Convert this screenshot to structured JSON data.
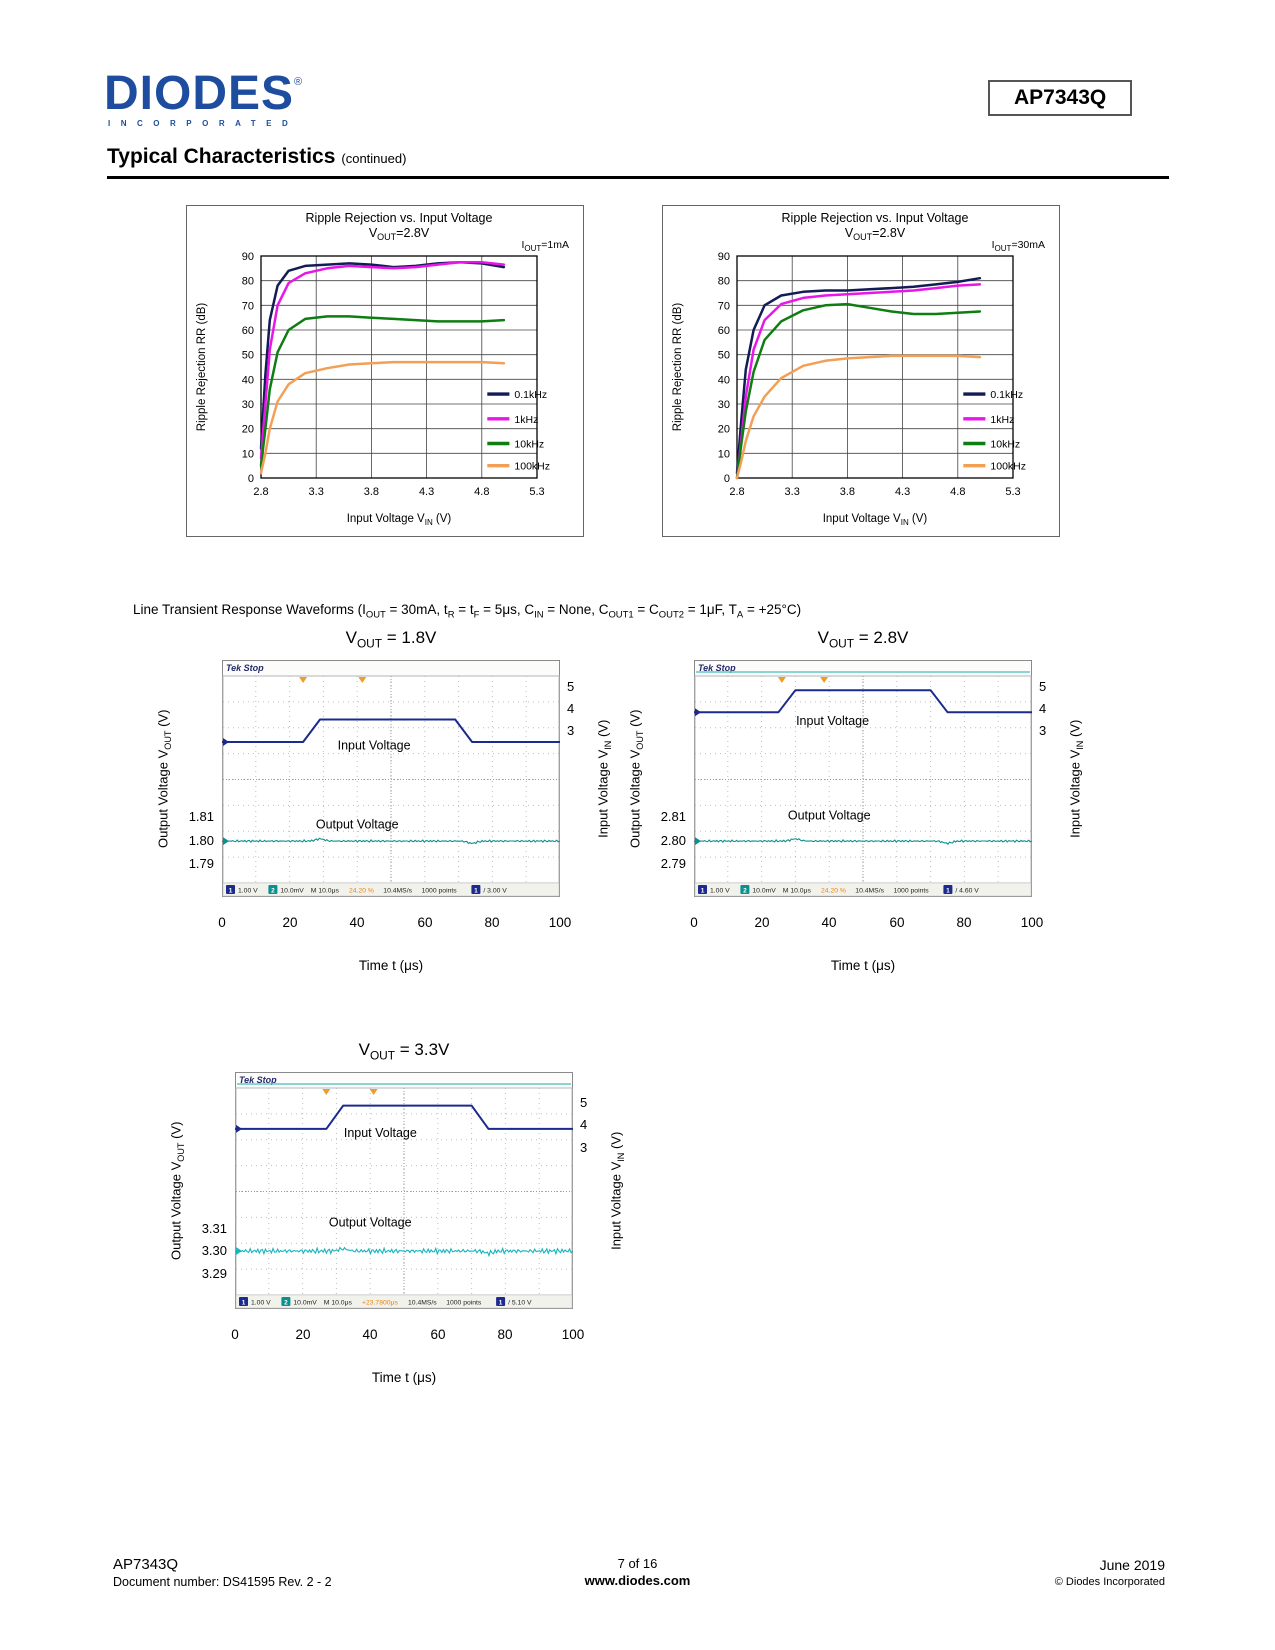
{
  "header": {
    "logo_text": "DIODES",
    "logo_reg": "®",
    "logo_sub": "INCORPORATED",
    "part_number": "AP7343Q",
    "section_title": "Typical Characteristics",
    "section_suffix": "(continued)"
  },
  "transient_heading": "Line Transient Response Waveforms (I_{OUT} = 30mA, t_{R} = t_{F} = 5μs, C_{IN} = None, C_{OUT1} = C_{OUT2} = 1μF, T_{A} = +25°C)",
  "chart_data": [
    {
      "type": "line",
      "title": "Ripple Rejection vs. Input Voltage",
      "subtitle": "V_{OUT}=2.8V",
      "condition": "I_{OUT}=1mA",
      "xlabel": "Input Voltage V_{IN} (V)",
      "ylabel": "Ripple Rejection RR (dB)",
      "xlim": [
        2.8,
        5.3
      ],
      "ylim": [
        0,
        90
      ],
      "xticks": [
        "2.8",
        "3.3",
        "3.8",
        "4.3",
        "4.8",
        "5.3"
      ],
      "yticks": [
        0,
        10,
        20,
        30,
        40,
        50,
        60,
        70,
        80,
        90
      ],
      "legend_x": [
        4.85,
        5.05
      ],
      "legend_y": [
        34,
        24,
        14,
        5
      ],
      "x": [
        2.8,
        2.84,
        2.88,
        2.95,
        3.05,
        3.2,
        3.4,
        3.6,
        3.8,
        4.0,
        4.2,
        4.4,
        4.6,
        4.8,
        5.0
      ],
      "series": [
        {
          "name": "0.1kHz",
          "color": "#141c55",
          "y": [
            12,
            42,
            64,
            78,
            84,
            86,
            86.5,
            87,
            86.5,
            85.5,
            86,
            87,
            87.5,
            87,
            85.5
          ]
        },
        {
          "name": "1kHz",
          "color": "#e816e8",
          "y": [
            8,
            30,
            52,
            70,
            79,
            83,
            85,
            86,
            85.5,
            85,
            85.5,
            86.5,
            87.5,
            87.5,
            86.5
          ]
        },
        {
          "name": "10kHz",
          "color": "#0e7d12",
          "y": [
            5,
            20,
            36,
            51,
            60,
            64.5,
            65.5,
            65.5,
            65,
            64.5,
            64,
            63.5,
            63.5,
            63.5,
            64
          ]
        },
        {
          "name": "100kHz",
          "color": "#f2a055",
          "y": [
            2,
            10,
            20,
            31,
            38,
            42.5,
            44.5,
            46,
            46.5,
            47,
            47,
            47,
            47,
            47,
            46.5
          ]
        }
      ]
    },
    {
      "type": "line",
      "title": "Ripple Rejection vs. Input Voltage",
      "subtitle": "V_{OUT}=2.8V",
      "condition": "I_{OUT}=30mA",
      "xlabel": "Input Voltage V_{IN} (V)",
      "ylabel": "Ripple Rejection RR (dB)",
      "xlim": [
        2.8,
        5.3
      ],
      "ylim": [
        0,
        90
      ],
      "xticks": [
        "2.8",
        "3.3",
        "3.8",
        "4.3",
        "4.8",
        "5.3"
      ],
      "yticks": [
        0,
        10,
        20,
        30,
        40,
        50,
        60,
        70,
        80,
        90
      ],
      "legend_x": [
        4.85,
        5.05
      ],
      "legend_y": [
        34,
        24,
        14,
        5
      ],
      "x": [
        2.8,
        2.84,
        2.88,
        2.95,
        3.05,
        3.2,
        3.4,
        3.6,
        3.8,
        4.0,
        4.2,
        4.4,
        4.6,
        4.8,
        5.0
      ],
      "series": [
        {
          "name": "0.1kHz",
          "color": "#141c55",
          "y": [
            2,
            24,
            44,
            60,
            70,
            74,
            75.5,
            76,
            76,
            76.5,
            77,
            77.5,
            78.5,
            79.5,
            81
          ]
        },
        {
          "name": "1kHz",
          "color": "#e816e8",
          "y": [
            0,
            16,
            33,
            52,
            64,
            70.5,
            73,
            74,
            74.5,
            75,
            75.5,
            76,
            77,
            78,
            78.5
          ]
        },
        {
          "name": "10kHz",
          "color": "#0e7d12",
          "y": [
            0,
            14,
            27,
            43,
            56,
            63.5,
            68,
            70,
            70.5,
            69,
            67.5,
            66.5,
            66.5,
            67,
            67.5
          ]
        },
        {
          "name": "100kHz",
          "color": "#f2a055",
          "y": [
            0,
            7,
            15,
            25,
            33,
            40.5,
            45.5,
            47.5,
            48.5,
            49,
            49.5,
            49.5,
            49.5,
            49.5,
            49
          ]
        }
      ]
    },
    {
      "type": "line",
      "style": "oscilloscope",
      "title": "V_{OUT} = 1.8V",
      "tek_label": "Tek Stop",
      "left_label": "Output Voltage V_{OUT} (V)",
      "right_label": "Input Voltage V_{IN} (V)",
      "xlabel": "Time t (μs)",
      "left_ticks": [
        {
          "label": "1.81",
          "div": 5.45
        },
        {
          "label": "1.80",
          "div": 6.38
        },
        {
          "label": "1.79",
          "div": 7.28
        }
      ],
      "right_ticks": [
        {
          "label": "5",
          "div": 0.45
        },
        {
          "label": "4",
          "div": 1.32
        },
        {
          "label": "3",
          "div": 2.18
        }
      ],
      "xticks": [
        "0",
        "20",
        "40",
        "60",
        "80",
        "100"
      ],
      "input": {
        "low_div": 2.55,
        "high_div": 1.68,
        "rise_start": 24,
        "rise_end": 29,
        "fall_start": 69,
        "fall_end": 74,
        "color": "#1b2a8c"
      },
      "output": {
        "div": 6.38,
        "noise": 1.2,
        "color": "#0d8f8f"
      },
      "labels": {
        "input": {
          "text": "Input Voltage",
          "x": 0.45,
          "div": 2.85
        },
        "output": {
          "text": "Output Voltage",
          "x": 0.4,
          "div": 5.9
        }
      },
      "trigger_marks": [
        0.24,
        0.415
      ],
      "header_line": false,
      "status": [
        {
          "chip": "1",
          "color": "#1b2a8c"
        },
        {
          "text": "1.00 V"
        },
        {
          "chip": "2",
          "color": "#0d8f8f"
        },
        {
          "text": "10.0mV"
        },
        {
          "text": "M 10.0μs"
        },
        {
          "text": "24.20 %",
          "color": "#e8820c"
        },
        {
          "text": "10.4MS/s"
        },
        {
          "text": "1000 points"
        },
        {
          "chip": "1",
          "color": "#1b2a8c"
        },
        {
          "text": "/ 3.00 V"
        }
      ]
    },
    {
      "type": "line",
      "style": "oscilloscope",
      "title": "V_{OUT} = 2.8V",
      "tek_label": "Tek Stop",
      "left_label": "Output Voltage V_{OUT} (V)",
      "right_label": "Input Voltage V_{IN} (V)",
      "xlabel": "Time t (μs)",
      "left_ticks": [
        {
          "label": "2.81",
          "div": 5.45
        },
        {
          "label": "2.80",
          "div": 6.38
        },
        {
          "label": "2.79",
          "div": 7.28
        }
      ],
      "right_ticks": [
        {
          "label": "5",
          "div": 0.45
        },
        {
          "label": "4",
          "div": 1.32
        },
        {
          "label": "3",
          "div": 2.18
        }
      ],
      "xticks": [
        "0",
        "20",
        "40",
        "60",
        "80",
        "100"
      ],
      "input": {
        "low_div": 1.4,
        "high_div": 0.55,
        "rise_start": 25,
        "rise_end": 30,
        "fall_start": 70,
        "fall_end": 75,
        "color": "#1b2a8c"
      },
      "output": {
        "div": 6.38,
        "noise": 1.2,
        "color": "#0d8f8f"
      },
      "labels": {
        "input": {
          "text": "Input Voltage",
          "x": 0.41,
          "div": 1.9
        },
        "output": {
          "text": "Output Voltage",
          "x": 0.4,
          "div": 5.55
        }
      },
      "trigger_marks": [
        0.26,
        0.385
      ],
      "header_line": true,
      "status": [
        {
          "chip": "1",
          "color": "#1b2a8c"
        },
        {
          "text": "1.00 V"
        },
        {
          "chip": "2",
          "color": "#0d8f8f"
        },
        {
          "text": "10.0mV"
        },
        {
          "text": "M 10.0μs"
        },
        {
          "text": "24.20 %",
          "color": "#e8820c"
        },
        {
          "text": "10.4MS/s"
        },
        {
          "text": "1000 points"
        },
        {
          "chip": "1",
          "color": "#1b2a8c"
        },
        {
          "text": "/ 4.60 V"
        }
      ]
    },
    {
      "type": "line",
      "style": "oscilloscope",
      "title": "V_{OUT} = 3.3V",
      "tek_label": "Tek Stop",
      "left_label": "Output Voltage V_{OUT} (V)",
      "right_label": "Input Voltage V_{IN} (V)",
      "xlabel": "Time t (μs)",
      "left_ticks": [
        {
          "label": "3.31",
          "div": 5.45
        },
        {
          "label": "3.30",
          "div": 6.3
        },
        {
          "label": "3.29",
          "div": 7.2
        }
      ],
      "right_ticks": [
        {
          "label": "5",
          "div": 0.6
        },
        {
          "label": "4",
          "div": 1.48
        },
        {
          "label": "3",
          "div": 2.36
        }
      ],
      "xticks": [
        "0",
        "20",
        "40",
        "60",
        "80",
        "100"
      ],
      "input": {
        "low_div": 1.58,
        "high_div": 0.68,
        "rise_start": 27,
        "rise_end": 32,
        "fall_start": 70,
        "fall_end": 75,
        "color": "#1b2a8c"
      },
      "output": {
        "div": 6.3,
        "noise": 3.0,
        "color": "#18b4bc"
      },
      "labels": {
        "input": {
          "text": "Input Voltage",
          "x": 0.43,
          "div": 1.9
        },
        "output": {
          "text": "Output Voltage",
          "x": 0.4,
          "div": 5.35
        }
      },
      "trigger_marks": [
        0.27,
        0.41
      ],
      "header_line": true,
      "status": [
        {
          "chip": "1",
          "color": "#1b2a8c"
        },
        {
          "text": "1.00 V"
        },
        {
          "chip": "2",
          "color": "#0d8f8f"
        },
        {
          "text": "10.0mV"
        },
        {
          "text": "M 10.0μs"
        },
        {
          "text": "+23.7800μs",
          "color": "#e8820c"
        },
        {
          "text": "10.4MS/s"
        },
        {
          "text": "1000 points"
        },
        {
          "chip": "1",
          "color": "#1b2a8c"
        },
        {
          "text": "/ 5.10 V"
        }
      ]
    }
  ],
  "footer": {
    "part": "AP7343Q",
    "doc": "Document number: DS41595  Rev. 2 - 2",
    "page": "7 of 16",
    "site": "www.diodes.com",
    "date": "June 2019",
    "copyright": "© Diodes Incorporated"
  }
}
